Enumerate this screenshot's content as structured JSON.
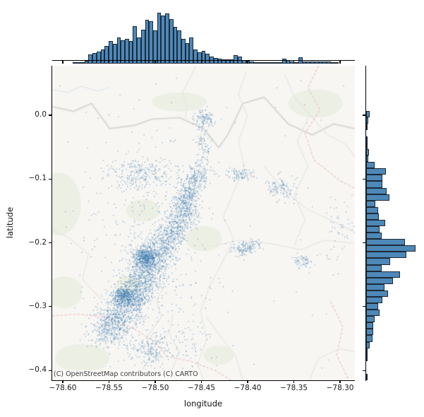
{
  "figure": {
    "background": "#ffffff"
  },
  "chart_data": {
    "type": "scatter",
    "subtype": "jointplot: geographic scatter over light basemap with marginal histograms (top = longitude, right = latitude)",
    "title": "",
    "xlabel": "longitude",
    "ylabel": "latitude",
    "xlim": [
      -78.6115,
      -78.284
    ],
    "ylim": [
      -0.4153,
      0.0775
    ],
    "x_ticks": [
      -78.6,
      -78.55,
      -78.5,
      -78.45,
      -78.4,
      -78.35,
      -78.3
    ],
    "x_tick_labels": [
      "−78.60",
      "−78.55",
      "−78.50",
      "−78.45",
      "−78.40",
      "−78.35",
      "−78.30"
    ],
    "y_ticks": [
      0.0,
      -0.1,
      -0.2,
      -0.3,
      -0.4
    ],
    "y_tick_labels": [
      "0.0",
      "−0.1",
      "−0.2",
      "−0.3",
      "−0.4"
    ],
    "grid": false,
    "legend": null,
    "basemap_attribution": "(C) OpenStreetMap contributors (C) CARTO",
    "point_color": "#3e7cb1",
    "point_alpha": 0.55,
    "bar_fill": "#4d88b8",
    "bar_edge": "#18222e",
    "n_points_estimate": 5400,
    "scatter_clusters": [
      {
        "type": "band",
        "x1": -78.555,
        "y1": -0.349,
        "x2": -78.521,
        "y2": -0.277,
        "sx": 0.011,
        "sy": 0.013,
        "n": 900
      },
      {
        "type": "band",
        "x1": -78.525,
        "y1": -0.289,
        "x2": -78.489,
        "y2": -0.195,
        "sx": 0.01,
        "sy": 0.012,
        "n": 1100
      },
      {
        "type": "blob",
        "cx": -78.511,
        "cy": -0.223,
        "sx": 0.0065,
        "sy": 0.0075,
        "n": 500
      },
      {
        "type": "blob",
        "cx": -78.534,
        "cy": -0.284,
        "sx": 0.006,
        "sy": 0.0075,
        "n": 350
      },
      {
        "type": "band",
        "x1": -78.489,
        "y1": -0.196,
        "x2": -78.462,
        "y2": -0.151,
        "sx": 0.008,
        "sy": 0.01,
        "n": 420
      },
      {
        "type": "band",
        "x1": -78.474,
        "y1": -0.15,
        "x2": -78.45,
        "y2": -0.086,
        "sx": 0.0065,
        "sy": 0.009,
        "n": 480
      },
      {
        "type": "blob",
        "cx": -78.447,
        "cy": -0.006,
        "sx": 0.0055,
        "sy": 0.007,
        "n": 110
      },
      {
        "type": "band",
        "x1": -78.451,
        "y1": -0.03,
        "x2": -78.444,
        "y2": -0.075,
        "sx": 0.004,
        "sy": 0.012,
        "n": 70
      },
      {
        "type": "blob",
        "cx": -78.514,
        "cy": -0.091,
        "sx": 0.021,
        "sy": 0.014,
        "n": 260
      },
      {
        "type": "blob",
        "cx": -78.408,
        "cy": -0.093,
        "sx": 0.008,
        "sy": 0.005,
        "n": 90
      },
      {
        "type": "blob",
        "cx": -78.364,
        "cy": -0.113,
        "sx": 0.009,
        "sy": 0.01,
        "n": 110
      },
      {
        "type": "band",
        "x1": -78.413,
        "y1": -0.21,
        "x2": -78.392,
        "y2": -0.206,
        "sx": 0.0055,
        "sy": 0.005,
        "n": 140
      },
      {
        "type": "blob",
        "cx": -78.34,
        "cy": -0.227,
        "sx": 0.0055,
        "sy": 0.0055,
        "n": 60
      },
      {
        "type": "blob",
        "cx": -78.504,
        "cy": -0.367,
        "sx": 0.01,
        "sy": 0.012,
        "n": 170
      },
      {
        "type": "blob",
        "cx": -78.302,
        "cy": -0.18,
        "sx": 0.012,
        "sy": 0.032,
        "n": 55
      },
      {
        "type": "blob",
        "cx": -78.507,
        "cy": -0.225,
        "sx": 0.033,
        "sy": 0.082,
        "n": 420
      },
      {
        "type": "blob",
        "cx": -78.467,
        "cy": -0.36,
        "sx": 0.018,
        "sy": 0.018,
        "n": 70
      },
      {
        "type": "uniform",
        "x1": -78.605,
        "y1": -0.405,
        "x2": -78.29,
        "y2": 0.06,
        "n": 65
      }
    ],
    "marginal_top": {
      "axis": "longitude",
      "units": "relative frequency (pixel-estimated, no count axis shown)",
      "bins": 75,
      "heights": [
        0,
        0,
        0,
        0,
        0,
        1,
        1,
        1.5,
        4,
        13,
        15,
        17,
        20,
        25,
        32,
        28,
        37,
        33,
        35,
        32,
        53,
        37,
        48,
        62,
        60,
        47,
        72,
        68,
        71,
        63,
        52,
        47,
        35,
        29,
        37,
        20,
        16,
        18,
        14,
        10,
        8,
        7,
        5.5,
        6,
        6,
        12,
        10,
        5,
        3.5,
        3,
        1.5,
        1.5,
        1.5,
        1.5,
        1,
        0.5,
        2,
        7,
        5,
        3,
        2,
        9,
        3,
        2.5,
        2.5,
        2.5,
        2.5,
        2.5,
        2.5,
        1,
        0.5,
        0,
        0,
        0,
        0
      ]
    },
    "marginal_right": {
      "axis": "latitude",
      "units": "relative frequency (pixel-estimated, no count axis shown)",
      "bins": 49,
      "heights": [
        0,
        0,
        0,
        0,
        0,
        0,
        0,
        5,
        3,
        1,
        0,
        0.5,
        1,
        4,
        3.5,
        12,
        28,
        23,
        23,
        29,
        33,
        13,
        17,
        18,
        27,
        19,
        22,
        55,
        70,
        57,
        34,
        22,
        48,
        38,
        26,
        31,
        23,
        17,
        19,
        12,
        10,
        10,
        9,
        5,
        2.5,
        1,
        0,
        0,
        2
      ]
    }
  },
  "map": {
    "bg": "#f7f6f3",
    "green_fill": "#ecefe3",
    "road_major": "#dcdcda",
    "road_minor": "#e7e7e4",
    "river": "#dfe8ee",
    "boundary": "#eccbcb",
    "green_patches": [
      [
        0.02,
        0.44,
        0.075,
        0.1
      ],
      [
        0.04,
        0.72,
        0.06,
        0.05
      ],
      [
        0.1,
        0.93,
        0.09,
        0.045
      ],
      [
        0.3,
        0.46,
        0.055,
        0.035
      ],
      [
        0.5,
        0.55,
        0.06,
        0.04
      ],
      [
        0.42,
        0.115,
        0.09,
        0.03
      ],
      [
        0.87,
        0.12,
        0.09,
        0.045
      ],
      [
        0.55,
        0.92,
        0.05,
        0.03
      ],
      [
        0.25,
        0.7,
        0.04,
        0.03
      ]
    ],
    "roads_major": [
      [
        [
          0,
          0.13
        ],
        [
          0.07,
          0.145
        ],
        [
          0.13,
          0.12
        ],
        [
          0.19,
          0.2
        ],
        [
          0.27,
          0.19
        ],
        [
          0.33,
          0.17
        ],
        [
          0.42,
          0.165
        ],
        [
          0.5,
          0.2
        ],
        [
          0.55,
          0.26
        ],
        [
          0.58,
          0.22
        ],
        [
          0.63,
          0.12
        ],
        [
          0.7,
          0.1
        ],
        [
          0.78,
          0.185
        ],
        [
          0.86,
          0.22
        ],
        [
          0.93,
          0.185
        ],
        [
          1,
          0.2
        ]
      ]
    ],
    "roads_minor": [
      [
        [
          0.475,
          0
        ],
        [
          0.455,
          0.04
        ],
        [
          0.43,
          0.085
        ],
        [
          0.445,
          0.13
        ],
        [
          0.44,
          0.165
        ]
      ],
      [
        [
          0.505,
          0.165
        ],
        [
          0.49,
          0.22
        ],
        [
          0.5,
          0.28
        ],
        [
          0.48,
          0.35
        ],
        [
          0.46,
          0.42
        ]
      ],
      [
        [
          0.64,
          0.02
        ],
        [
          0.615,
          0.09
        ],
        [
          0.645,
          0.16
        ],
        [
          0.615,
          0.24
        ],
        [
          0.635,
          0.32
        ],
        [
          0.6,
          0.4
        ],
        [
          0.565,
          0.48
        ],
        [
          0.6,
          0.55
        ],
        [
          0.56,
          0.63
        ],
        [
          0.52,
          0.7
        ],
        [
          0.49,
          0.78
        ],
        [
          0.51,
          0.87
        ],
        [
          0.48,
          0.95
        ],
        [
          0.5,
          1
        ]
      ],
      [
        [
          0.77,
          0.03
        ],
        [
          0.8,
          0.1
        ],
        [
          0.85,
          0.155
        ],
        [
          0.91,
          0.22
        ],
        [
          0.97,
          0.25
        ],
        [
          1,
          0.29
        ]
      ],
      [
        [
          0.85,
          0.155
        ],
        [
          0.81,
          0.24
        ],
        [
          0.845,
          0.32
        ],
        [
          0.8,
          0.41
        ],
        [
          0.835,
          0.49
        ],
        [
          0.8,
          0.57
        ]
      ],
      [
        [
          0.7,
          0.32
        ],
        [
          0.77,
          0.4
        ],
        [
          0.84,
          0.455
        ],
        [
          0.92,
          0.49
        ],
        [
          1,
          0.53
        ]
      ],
      [
        [
          0.52,
          0.575
        ],
        [
          0.62,
          0.555
        ],
        [
          0.72,
          0.565
        ],
        [
          0.82,
          0.585
        ],
        [
          0.9,
          0.555
        ],
        [
          1,
          0.565
        ]
      ],
      [
        [
          0.28,
          1
        ],
        [
          0.32,
          0.93
        ],
        [
          0.315,
          0.86
        ],
        [
          0.36,
          0.8
        ],
        [
          0.345,
          0.745
        ],
        [
          0.37,
          0.7
        ]
      ],
      [
        [
          0.4,
          0.79
        ],
        [
          0.385,
          0.85
        ],
        [
          0.42,
          0.91
        ],
        [
          0.395,
          0.97
        ],
        [
          0.41,
          1
        ]
      ],
      [
        [
          0.63,
          1
        ],
        [
          0.605,
          0.92
        ],
        [
          0.555,
          0.86
        ],
        [
          0.51,
          0.8
        ]
      ],
      [
        [
          0.85,
          1
        ],
        [
          0.88,
          0.93
        ],
        [
          0.95,
          0.9
        ],
        [
          1,
          0.91
        ]
      ],
      [
        [
          0,
          0.52
        ],
        [
          0.06,
          0.55
        ],
        [
          0.12,
          0.6
        ],
        [
          0.1,
          0.68
        ],
        [
          0.16,
          0.74
        ]
      ]
    ],
    "boundaries": [
      [
        [
          0.88,
          0
        ],
        [
          0.845,
          0.07
        ],
        [
          0.885,
          0.14
        ],
        [
          0.835,
          0.215
        ],
        [
          0.865,
          0.3
        ],
        [
          0.95,
          0.365
        ],
        [
          1,
          0.39
        ]
      ],
      [
        [
          0,
          0.795
        ],
        [
          0.09,
          0.79
        ],
        [
          0.18,
          0.8
        ],
        [
          0.26,
          0.83
        ],
        [
          0.335,
          0.875
        ],
        [
          0.38,
          0.925
        ],
        [
          0.46,
          0.94
        ],
        [
          0.54,
          0.97
        ],
        [
          0.59,
          1
        ]
      ],
      [
        [
          0.92,
          0.75
        ],
        [
          0.96,
          0.83
        ],
        [
          0.94,
          0.92
        ],
        [
          0.98,
          1
        ]
      ]
    ],
    "rivers": [
      [
        [
          0,
          0.075
        ],
        [
          0.05,
          0.085
        ],
        [
          0.095,
          0.065
        ],
        [
          0.15,
          0.08
        ],
        [
          0.19,
          0.07
        ]
      ]
    ]
  }
}
